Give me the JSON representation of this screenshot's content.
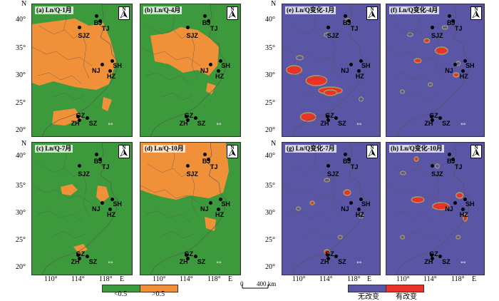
{
  "panels": [
    {
      "label": "(a) Ln/Q-1月",
      "mode": "category",
      "variant": 1
    },
    {
      "label": "(b) Ln/Q-4月",
      "mode": "category",
      "variant": 2
    },
    {
      "label": "(c) Ln/Q-7月",
      "mode": "category",
      "variant": 3
    },
    {
      "label": "(d) Ln/Q-10月",
      "mode": "category",
      "variant": 4
    },
    {
      "label": "(e) Ln/Q变化-1月",
      "mode": "change",
      "variant": 1
    },
    {
      "label": "(f) Ln/Q变化-4月",
      "mode": "change",
      "variant": 2
    },
    {
      "label": "(g) Ln/Q变化-7月",
      "mode": "change",
      "variant": 3
    },
    {
      "label": "(h) Ln/Q变化-10月",
      "mode": "change",
      "variant": 4
    }
  ],
  "north_arrow": "N",
  "cities": [
    "BJ",
    "TJ",
    "SJZ",
    "SH",
    "NJ",
    "HZ",
    "GZ",
    "ZH",
    "SZ"
  ],
  "lat_axis": {
    "name": "N",
    "ticks": [
      "40°",
      "35°",
      "30°",
      "25°",
      "20°"
    ]
  },
  "lon_axis": {
    "name": "E",
    "ticks": [
      "110°",
      "114°",
      "118°"
    ]
  },
  "legend_left": [
    {
      "label": "<0.5",
      "color": "#3c9a3c"
    },
    {
      "label": ">0.5",
      "color": "#f0913a"
    }
  ],
  "legend_right": [
    {
      "label": "无改变",
      "color": "#5a55a5"
    },
    {
      "label": "有改变",
      "color": "#e8322a"
    }
  ],
  "scale_bar": {
    "zero": "0",
    "distance": "400 km"
  },
  "colors": {
    "green": "#3c9a3c",
    "orange": "#f0913a",
    "purple": "#5a55a5",
    "red": "#e8322a",
    "olive": "#a8a060"
  }
}
